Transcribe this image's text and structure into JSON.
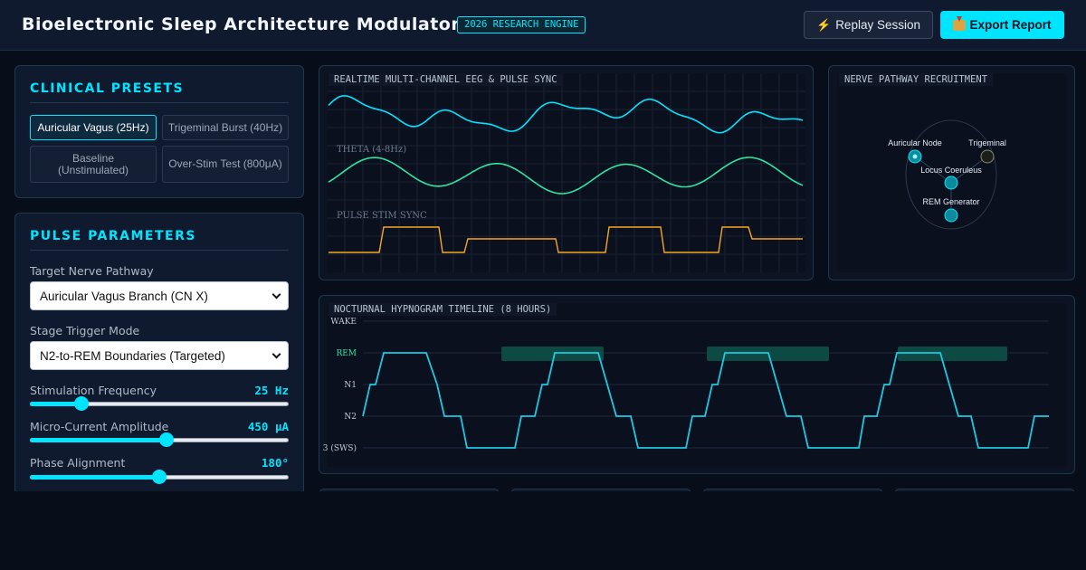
{
  "header": {
    "title": "Bioelectronic Sleep Architecture Modulator",
    "badge": "2026 RESEARCH ENGINE",
    "replay_label": "Replay Session",
    "export_label": "Export Report",
    "replay_icon": "lightning-bolt-icon",
    "export_icon": "inbox-tray-icon"
  },
  "presets": {
    "heading": "CLINICAL PRESETS",
    "items": [
      {
        "label": "Auricular Vagus (25Hz)",
        "active": true
      },
      {
        "label": "Trigeminal Burst (40Hz)",
        "active": false
      },
      {
        "label": "Baseline (Unstimulated)",
        "active": false
      },
      {
        "label": "Over-Stim Test (800μA)",
        "active": false
      }
    ]
  },
  "params": {
    "heading": "PULSE PARAMETERS",
    "target_label": "Target Nerve Pathway",
    "target_value": "Auricular Vagus Branch (CN X)",
    "trigger_label": "Stage Trigger Mode",
    "trigger_value": "N2-to-REM Boundaries (Targeted)",
    "frequency": {
      "label": "Stimulation Frequency",
      "display": "25 Hz",
      "fraction": 0.18
    },
    "amplitude": {
      "label": "Micro-Current Amplitude",
      "display": "450 μA",
      "fraction": 0.53
    },
    "phase": {
      "label": "Phase Alignment",
      "display": "180°",
      "fraction": 0.5
    }
  },
  "eeg": {
    "caption": "REALTIME MULTI-CHANNEL EEG & PULSE SYNC",
    "channels": [
      "THETA (4-8Hz)",
      "PULSE STIM SYNC"
    ],
    "colors": {
      "delta": "#00e5ff",
      "theta": "#2ee6a0",
      "pulse": "#f5a623"
    }
  },
  "nerve": {
    "caption": "NERVE PATHWAY RECRUITMENT",
    "nodes": [
      {
        "label": "Auricular Node",
        "state": "active"
      },
      {
        "label": "Trigeminal",
        "state": "inactive"
      },
      {
        "label": "Locus Coeruleus",
        "state": "on"
      },
      {
        "label": "REM Generator",
        "state": "on"
      }
    ]
  },
  "hypnogram": {
    "caption": "NOCTURNAL HYPNOGRAM TIMELINE (8 HOURS)",
    "stage_labels": [
      "WAKE",
      "REM",
      "N1",
      "N2",
      "3 (SWS)"
    ],
    "line_color": "#1ec8e0",
    "rem_band_color": "#0e4a44"
  }
}
